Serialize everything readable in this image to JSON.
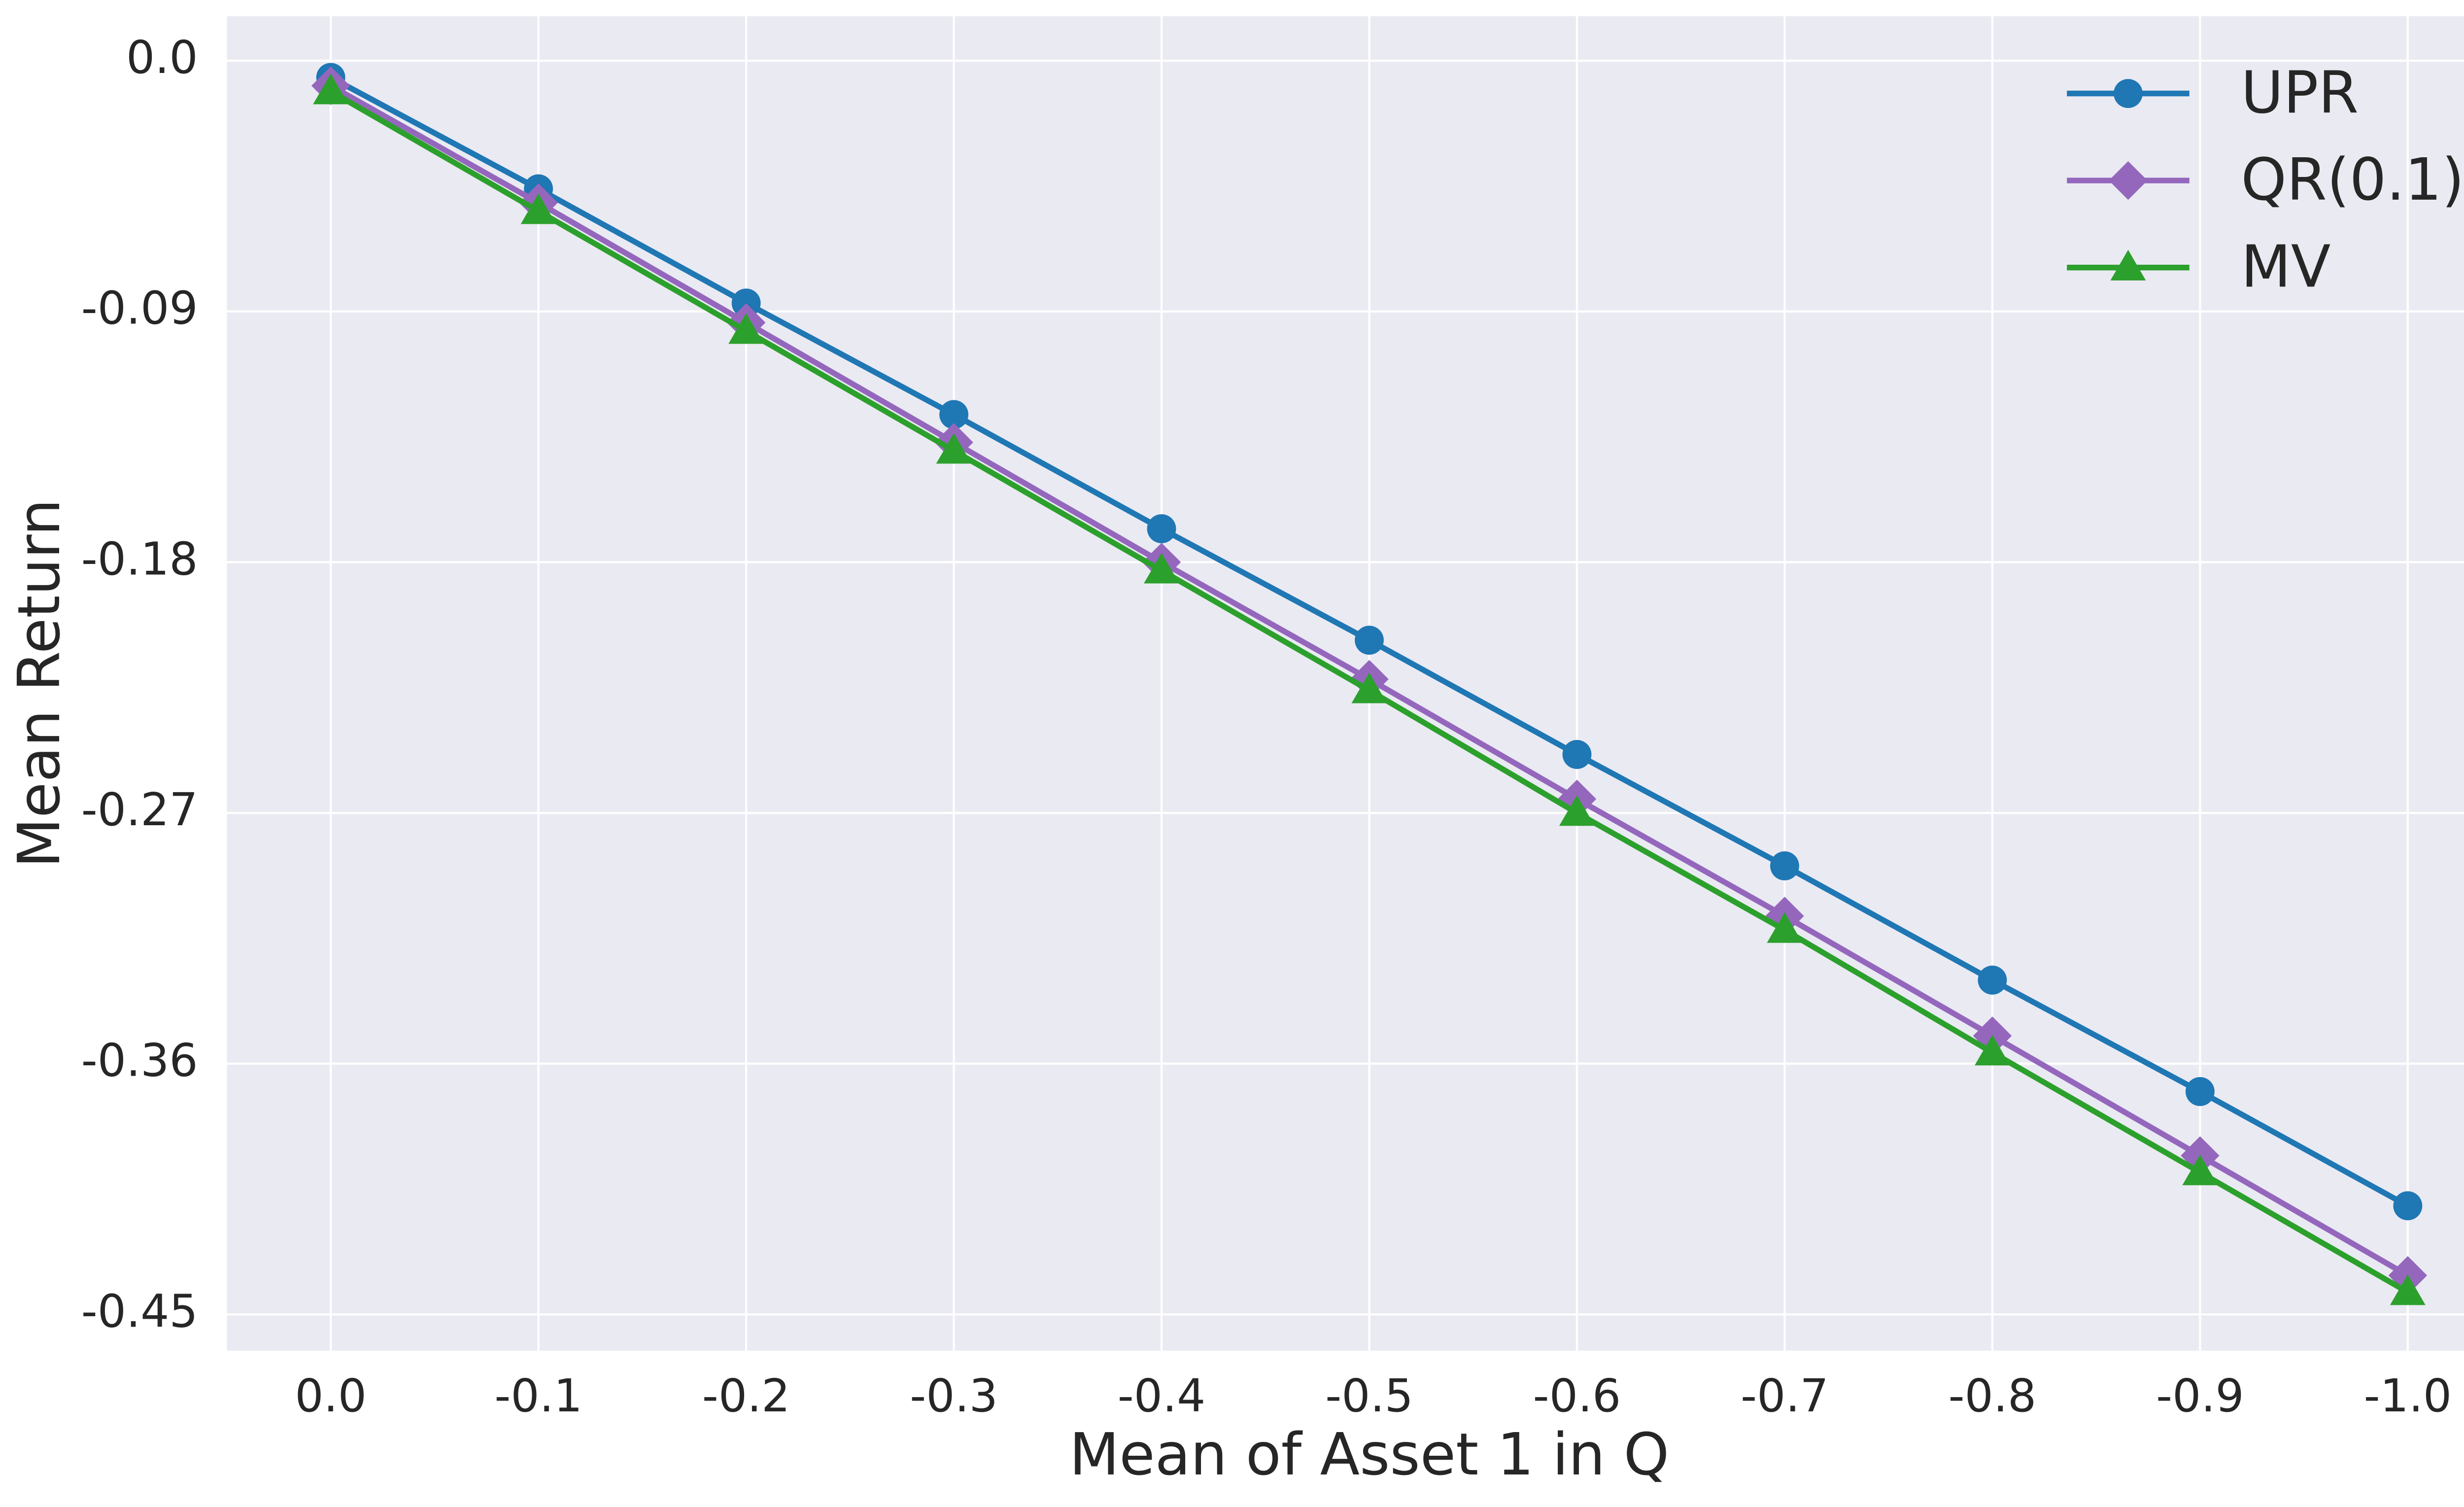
{
  "chart_data": {
    "type": "line",
    "x_label": "Mean of Asset 1 in Q",
    "y_label": "Mean Return",
    "x": [
      0.0,
      -0.1,
      -0.2,
      -0.3,
      -0.4,
      -0.5,
      -0.6,
      -0.7,
      -0.8,
      -0.9,
      -1.0
    ],
    "series": [
      {
        "name": "UPR",
        "color": "#1f77b4",
        "marker": "circle",
        "values": [
          -0.006,
          -0.046,
          -0.087,
          -0.127,
          -0.168,
          -0.208,
          -0.249,
          -0.289,
          -0.33,
          -0.37,
          -0.411
        ]
      },
      {
        "name": "QR(0.1)",
        "color": "#9467bd",
        "marker": "diamond",
        "values": [
          -0.009,
          -0.051,
          -0.094,
          -0.137,
          -0.18,
          -0.222,
          -0.265,
          -0.307,
          -0.35,
          -0.393,
          -0.436
        ]
      },
      {
        "name": "MV",
        "color": "#2ca02c",
        "marker": "triangle",
        "values": [
          -0.011,
          -0.054,
          -0.097,
          -0.14,
          -0.183,
          -0.226,
          -0.27,
          -0.312,
          -0.356,
          -0.399,
          -0.442
        ]
      }
    ],
    "xlim": [
      0.05,
      -1.05
    ],
    "ylim": [
      -0.463,
      0.016
    ],
    "xticks": [
      {
        "value": 0.0,
        "label": "0.0"
      },
      -0.1,
      -0.2,
      -0.3,
      -0.4,
      -0.5,
      -0.6,
      -0.7,
      -0.8,
      -0.9,
      {
        "value": -1.0,
        "label": "-1.0"
      }
    ],
    "yticks": [
      {
        "value": 0.0,
        "label": "0.0"
      },
      -0.09,
      -0.18,
      -0.27,
      -0.36,
      -0.45
    ],
    "grid": true,
    "legend": "upper right"
  }
}
